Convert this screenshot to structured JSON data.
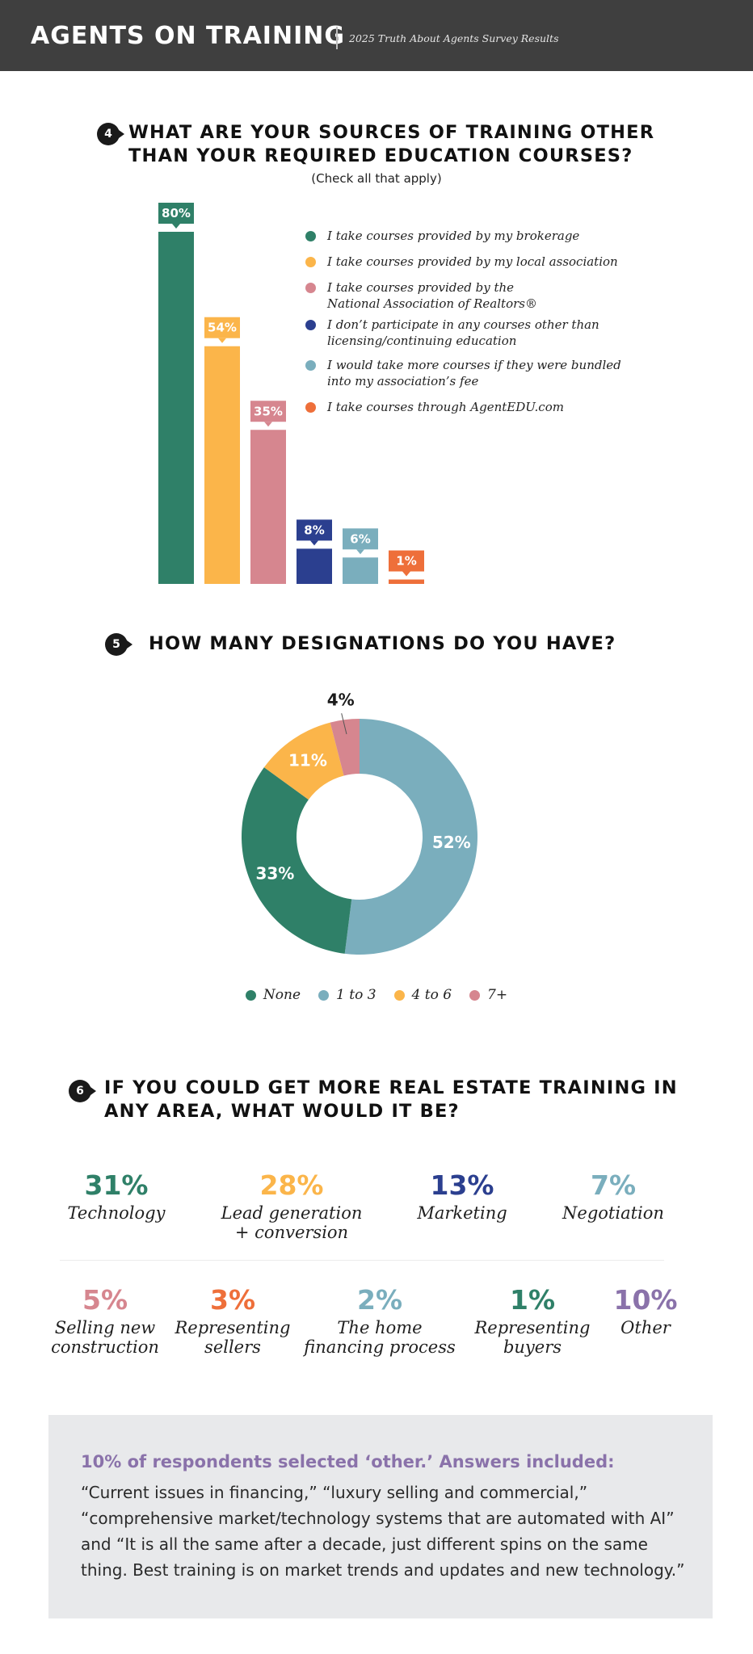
{
  "header": {
    "title": "AGENTS ON TRAINING",
    "subtitle": "2025 Truth About Agents Survey Results"
  },
  "q4": {
    "number": "4",
    "title_line1": "WHAT ARE YOUR SOURCES OF TRAINING OTHER",
    "title_line2": "THAN YOUR REQUIRED EDUCATION COURSES?",
    "note": "(Check all that apply)"
  },
  "q5": {
    "number": "5",
    "title": "HOW MANY DESIGNATIONS DO YOU HAVE?"
  },
  "q6": {
    "number": "6",
    "title_line1": "IF YOU COULD GET MORE REAL ESTATE TRAINING IN",
    "title_line2": "ANY AREA, WHAT WOULD IT BE?",
    "stats": [
      {
        "pct": "31%",
        "label": "Technology",
        "color": "#2f8068"
      },
      {
        "pct": "28%",
        "label": "Lead generation\n+ conversion",
        "color": "#fbb54a"
      },
      {
        "pct": "13%",
        "label": "Marketing",
        "color": "#2b3f8f"
      },
      {
        "pct": "7%",
        "label": "Negotiation",
        "color": "#7aaebd"
      },
      {
        "pct": "5%",
        "label": "Selling new\nconstruction",
        "color": "#d6868f"
      },
      {
        "pct": "3%",
        "label": "Representing\nsellers",
        "color": "#ee6f3a"
      },
      {
        "pct": "2%",
        "label": "The home\nfinancing process",
        "color": "#7aaebd"
      },
      {
        "pct": "1%",
        "label": "Representing\nbuyers",
        "color": "#2f8068"
      },
      {
        "pct": "10%",
        "label": "Other",
        "color": "#8a72aa"
      }
    ]
  },
  "other_box": {
    "heading": "10% of respondents selected ‘other.’ Answers included:",
    "body": "“Current issues in financing,” “luxury selling and commercial,” “comprehensive market/technology systems that are automated with AI” and “It is all the same after a decade, just different spins on the same thing. Best training is on market trends and updates and new technology.”"
  },
  "chart_data": [
    {
      "type": "bar",
      "title": "WHAT ARE YOUR SOURCES OF TRAINING OTHER THAN YOUR REQUIRED EDUCATION COURSES?",
      "subtitle": "(Check all that apply)",
      "categories": [
        "I take courses provided by my brokerage",
        "I take courses provided by my local association",
        "I take courses provided by the\nNational Association of Realtors®",
        "I don’t participate in any courses other than\nlicensing/continuing education",
        "I would take more courses if they were bundled\ninto my association’s fee",
        "I take courses through AgentEDU.com"
      ],
      "values": [
        80,
        54,
        35,
        8,
        6,
        1
      ],
      "value_labels": [
        "80%",
        "54%",
        "35%",
        "8%",
        "6%",
        "1%"
      ],
      "colors": [
        "#2f8068",
        "#fbb54a",
        "#d6868f",
        "#2b3f8f",
        "#7aaebd",
        "#ee6f3a"
      ],
      "ylim": [
        0,
        80
      ],
      "grid": false,
      "legend": "right"
    },
    {
      "type": "pie",
      "title": "HOW MANY DESIGNATIONS DO YOU HAVE?",
      "categories": [
        "None",
        "1 to 3",
        "4 to 6",
        "7+"
      ],
      "values": [
        33,
        52,
        11,
        4
      ],
      "value_labels": [
        "33%",
        "52%",
        "11%",
        "4%"
      ],
      "colors": [
        "#2f8068",
        "#7aaebd",
        "#fbb54a",
        "#d6868f"
      ],
      "legend": "bottom"
    }
  ]
}
